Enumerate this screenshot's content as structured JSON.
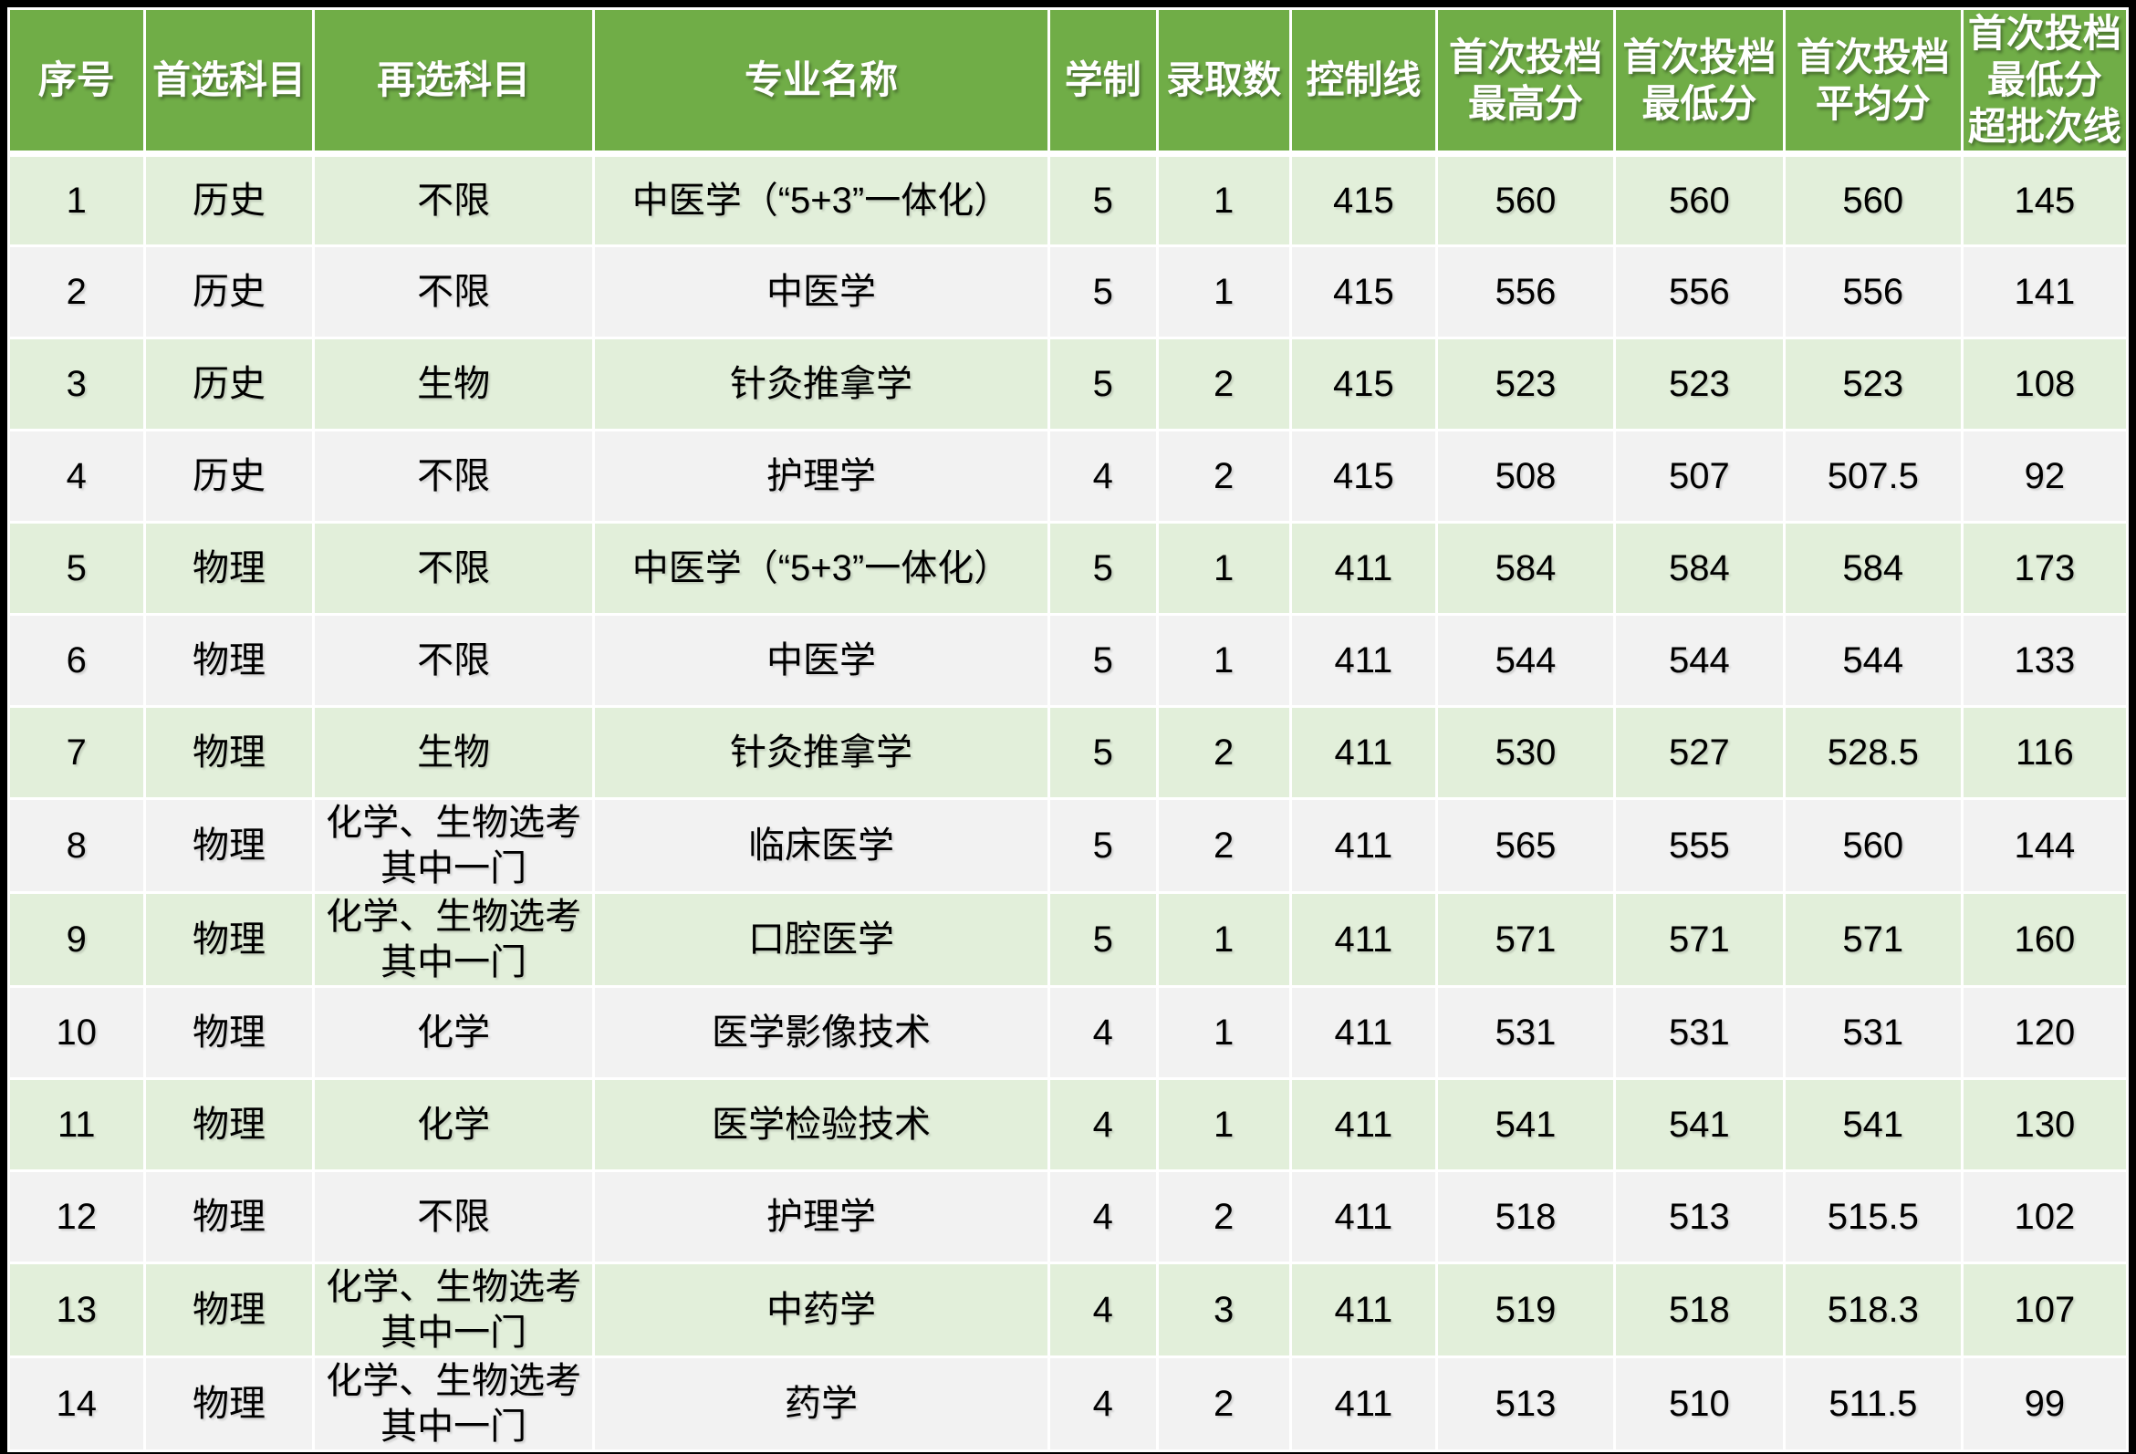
{
  "colors": {
    "header_bg": "#70AD47",
    "row_odd_bg": "#E2EFDA",
    "row_even_bg": "#F2F2F2",
    "outer_border": "#000000",
    "grid_line": "#FFFFFF",
    "header_text": "#FFFFFF",
    "body_text": "#000000"
  },
  "table": {
    "headers": [
      "序号",
      "首选科目",
      "再选科目",
      "专业名称",
      "学制",
      "录取数",
      "控制线",
      "首次投档\n最高分",
      "首次投档\n最低分",
      "首次投档\n平均分",
      "首次投档\n最低分\n超批次线"
    ],
    "rows": [
      [
        "1",
        "历史",
        "不限",
        "中医学（“5+3”一体化）",
        "5",
        "1",
        "415",
        "560",
        "560",
        "560",
        "145"
      ],
      [
        "2",
        "历史",
        "不限",
        "中医学",
        "5",
        "1",
        "415",
        "556",
        "556",
        "556",
        "141"
      ],
      [
        "3",
        "历史",
        "生物",
        "针灸推拿学",
        "5",
        "2",
        "415",
        "523",
        "523",
        "523",
        "108"
      ],
      [
        "4",
        "历史",
        "不限",
        "护理学",
        "4",
        "2",
        "415",
        "508",
        "507",
        "507.5",
        "92"
      ],
      [
        "5",
        "物理",
        "不限",
        "中医学（“5+3”一体化）",
        "5",
        "1",
        "411",
        "584",
        "584",
        "584",
        "173"
      ],
      [
        "6",
        "物理",
        "不限",
        "中医学",
        "5",
        "1",
        "411",
        "544",
        "544",
        "544",
        "133"
      ],
      [
        "7",
        "物理",
        "生物",
        "针灸推拿学",
        "5",
        "2",
        "411",
        "530",
        "527",
        "528.5",
        "116"
      ],
      [
        "8",
        "物理",
        "化学、生物选考其中一门",
        "临床医学",
        "5",
        "2",
        "411",
        "565",
        "555",
        "560",
        "144"
      ],
      [
        "9",
        "物理",
        "化学、生物选考其中一门",
        "口腔医学",
        "5",
        "1",
        "411",
        "571",
        "571",
        "571",
        "160"
      ],
      [
        "10",
        "物理",
        "化学",
        "医学影像技术",
        "4",
        "1",
        "411",
        "531",
        "531",
        "531",
        "120"
      ],
      [
        "11",
        "物理",
        "化学",
        "医学检验技术",
        "4",
        "1",
        "411",
        "541",
        "541",
        "541",
        "130"
      ],
      [
        "12",
        "物理",
        "不限",
        "护理学",
        "4",
        "2",
        "411",
        "518",
        "513",
        "515.5",
        "102"
      ],
      [
        "13",
        "物理",
        "化学、生物选考其中一门",
        "中药学",
        "4",
        "3",
        "411",
        "519",
        "518",
        "518.3",
        "107"
      ],
      [
        "14",
        "物理",
        "化学、生物选考其中一门",
        "药学",
        "4",
        "2",
        "411",
        "513",
        "510",
        "511.5",
        "99"
      ]
    ]
  },
  "chart_data": {
    "type": "table",
    "title": "",
    "columns": [
      "序号",
      "首选科目",
      "再选科目",
      "专业名称",
      "学制",
      "录取数",
      "控制线",
      "首次投档最高分",
      "首次投档最低分",
      "首次投档平均分",
      "首次投档最低分超批次线"
    ],
    "rows": [
      [
        1,
        "历史",
        "不限",
        "中医学（“5+3”一体化）",
        5,
        1,
        415,
        560,
        560,
        560,
        145
      ],
      [
        2,
        "历史",
        "不限",
        "中医学",
        5,
        1,
        415,
        556,
        556,
        556,
        141
      ],
      [
        3,
        "历史",
        "生物",
        "针灸推拿学",
        5,
        2,
        415,
        523,
        523,
        523,
        108
      ],
      [
        4,
        "历史",
        "不限",
        "护理学",
        4,
        2,
        415,
        508,
        507,
        507.5,
        92
      ],
      [
        5,
        "物理",
        "不限",
        "中医学（“5+3”一体化）",
        5,
        1,
        411,
        584,
        584,
        584,
        173
      ],
      [
        6,
        "物理",
        "不限",
        "中医学",
        5,
        1,
        411,
        544,
        544,
        544,
        133
      ],
      [
        7,
        "物理",
        "生物",
        "针灸推拿学",
        5,
        2,
        411,
        530,
        527,
        528.5,
        116
      ],
      [
        8,
        "物理",
        "化学、生物选考其中一门",
        "临床医学",
        5,
        2,
        411,
        565,
        555,
        560,
        144
      ],
      [
        9,
        "物理",
        "化学、生物选考其中一门",
        "口腔医学",
        5,
        1,
        411,
        571,
        571,
        571,
        160
      ],
      [
        10,
        "物理",
        "化学",
        "医学影像技术",
        4,
        1,
        411,
        531,
        531,
        531,
        120
      ],
      [
        11,
        "物理",
        "化学",
        "医学检验技术",
        4,
        1,
        411,
        541,
        541,
        541,
        130
      ],
      [
        12,
        "物理",
        "不限",
        "护理学",
        4,
        2,
        411,
        518,
        513,
        515.5,
        102
      ],
      [
        13,
        "物理",
        "化学、生物选考其中一门",
        "中药学",
        4,
        3,
        411,
        519,
        518,
        518.3,
        107
      ],
      [
        14,
        "物理",
        "化学、生物选考其中一门",
        "药学",
        4,
        2,
        411,
        513,
        510,
        511.5,
        99
      ]
    ]
  }
}
